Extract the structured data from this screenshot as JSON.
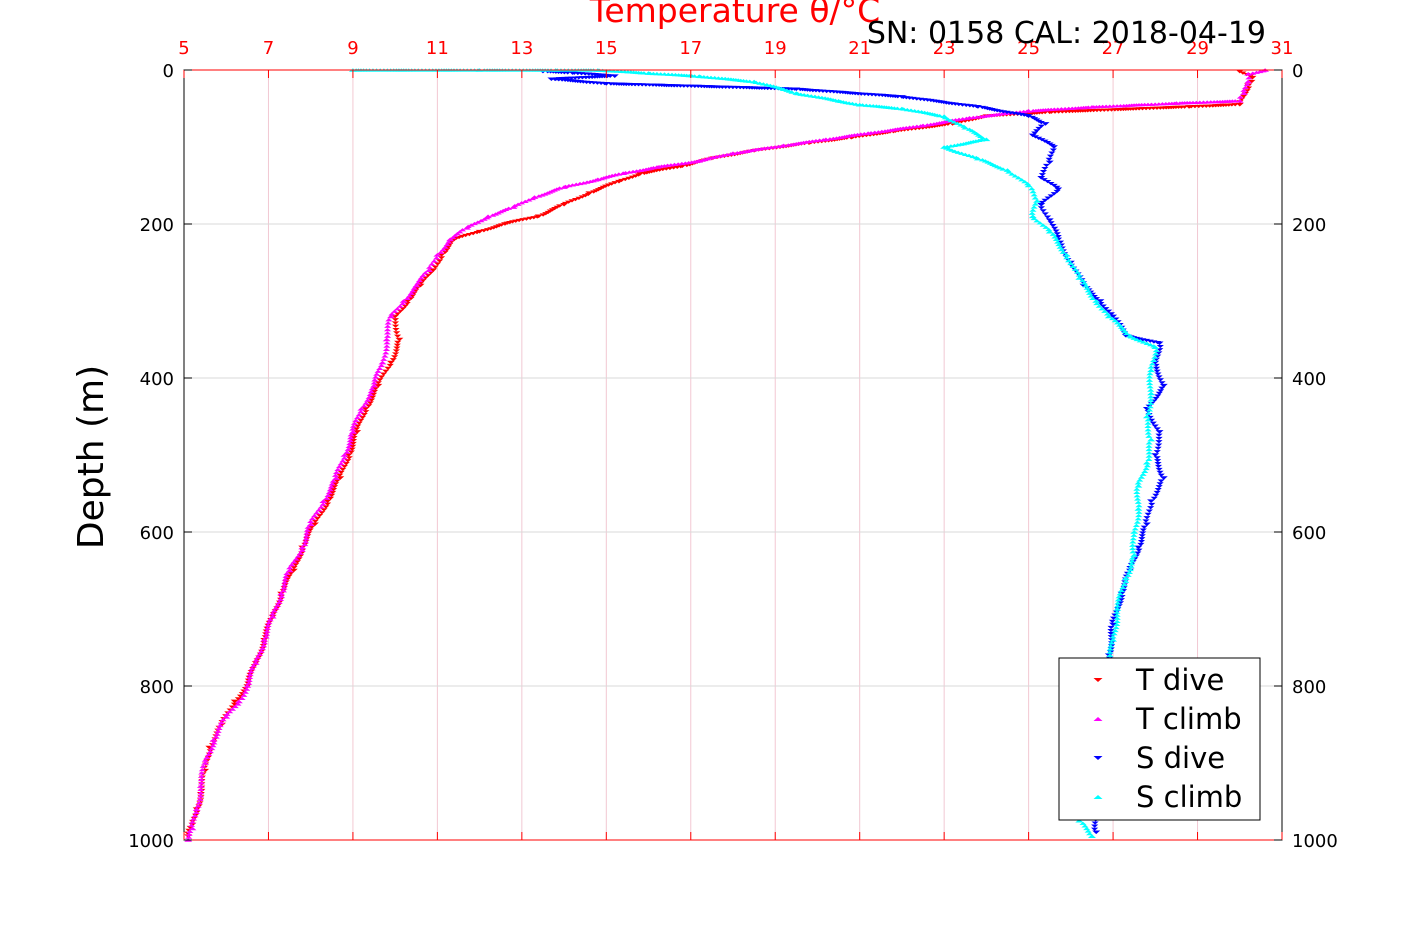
{
  "chart_data": {
    "type": "scatter",
    "title": "Temperature θ/°C",
    "annotation": "SN: 0158  CAL: 2018-04-19",
    "ylabel": "Depth (m)",
    "xlim": [
      5,
      31
    ],
    "ylim": [
      0,
      1000
    ],
    "y_inverted": true,
    "x_axis_position": "top",
    "x_ticks": [
      "5",
      "7",
      "9",
      "11",
      "13",
      "15",
      "17",
      "19",
      "21",
      "23",
      "25",
      "27",
      "29",
      "31"
    ],
    "y_ticks": [
      "0",
      "200",
      "400",
      "600",
      "800",
      "1000"
    ],
    "grid": true,
    "legend_position": "bottom-right",
    "colors": {
      "axis_x": "#ff0000",
      "grid": "#d9d9d9",
      "grid_x": "#f2c8d2",
      "t_dive": "#ff0000",
      "t_climb": "#ff00ff",
      "s_dive": "#0000ff",
      "s_climb": "#00ffff"
    },
    "series": [
      {
        "name": "T dive",
        "marker": "triangle-down",
        "color": "#ff0000",
        "points": [
          [
            30.0,
            2
          ],
          [
            30.3,
            10
          ],
          [
            30.2,
            20
          ],
          [
            30.0,
            45
          ],
          [
            28.8,
            48
          ],
          [
            25.5,
            55
          ],
          [
            24.0,
            60
          ],
          [
            23.2,
            70
          ],
          [
            21.8,
            80
          ],
          [
            20.8,
            88
          ],
          [
            19.8,
            95
          ],
          [
            18.5,
            105
          ],
          [
            17.5,
            115
          ],
          [
            16.8,
            125
          ],
          [
            15.8,
            135
          ],
          [
            15.3,
            145
          ],
          [
            14.6,
            160
          ],
          [
            14.0,
            175
          ],
          [
            13.4,
            190
          ],
          [
            12.6,
            200
          ],
          [
            12.0,
            210
          ],
          [
            11.4,
            220
          ],
          [
            11.1,
            240
          ],
          [
            10.9,
            260
          ],
          [
            10.6,
            280
          ],
          [
            10.3,
            300
          ],
          [
            10.0,
            320
          ],
          [
            10.1,
            350
          ],
          [
            9.9,
            380
          ],
          [
            9.6,
            410
          ],
          [
            9.3,
            440
          ],
          [
            9.1,
            470
          ],
          [
            8.9,
            500
          ],
          [
            8.7,
            530
          ],
          [
            8.4,
            560
          ],
          [
            8.1,
            590
          ],
          [
            7.8,
            620
          ],
          [
            7.6,
            650
          ],
          [
            7.3,
            680
          ],
          [
            7.1,
            710
          ],
          [
            6.9,
            740
          ],
          [
            6.7,
            770
          ],
          [
            6.5,
            800
          ],
          [
            6.2,
            820
          ],
          [
            5.9,
            850
          ],
          [
            5.6,
            880
          ],
          [
            5.5,
            910
          ],
          [
            5.4,
            940
          ],
          [
            5.3,
            960
          ],
          [
            5.2,
            980
          ],
          [
            5.1,
            995
          ]
        ]
      },
      {
        "name": "T climb",
        "marker": "triangle-up",
        "color": "#ff00ff",
        "points": [
          [
            30.6,
            0
          ],
          [
            30.2,
            5
          ],
          [
            30.2,
            15
          ],
          [
            30.1,
            30
          ],
          [
            30.0,
            40
          ],
          [
            28.5,
            43
          ],
          [
            26.5,
            48
          ],
          [
            25.0,
            53
          ],
          [
            23.6,
            62
          ],
          [
            22.5,
            72
          ],
          [
            21.2,
            82
          ],
          [
            20.2,
            90
          ],
          [
            19.2,
            98
          ],
          [
            18.0,
            108
          ],
          [
            17.2,
            118
          ],
          [
            16.2,
            126
          ],
          [
            15.4,
            134
          ],
          [
            14.8,
            142
          ],
          [
            14.0,
            152
          ],
          [
            13.3,
            165
          ],
          [
            12.8,
            178
          ],
          [
            12.2,
            190
          ],
          [
            11.7,
            205
          ],
          [
            11.3,
            220
          ],
          [
            11.0,
            240
          ],
          [
            10.8,
            260
          ],
          [
            10.5,
            280
          ],
          [
            10.2,
            300
          ],
          [
            9.9,
            320
          ],
          [
            9.8,
            350
          ],
          [
            9.7,
            380
          ],
          [
            9.5,
            410
          ],
          [
            9.2,
            440
          ],
          [
            9.0,
            470
          ],
          [
            8.8,
            500
          ],
          [
            8.6,
            530
          ],
          [
            8.3,
            560
          ],
          [
            8.0,
            590
          ],
          [
            7.8,
            620
          ],
          [
            7.5,
            650
          ],
          [
            7.3,
            680
          ],
          [
            7.1,
            710
          ],
          [
            6.9,
            740
          ],
          [
            6.7,
            770
          ],
          [
            6.5,
            800
          ],
          [
            6.3,
            820
          ],
          [
            6.0,
            840
          ],
          [
            5.7,
            870
          ],
          [
            5.5,
            900
          ],
          [
            5.4,
            930
          ],
          [
            5.3,
            960
          ],
          [
            5.2,
            985
          ],
          [
            5.1,
            1000
          ]
        ]
      },
      {
        "name": "S dive",
        "marker": "triangle-down",
        "color": "#0000ff",
        "points": [
          [
            13.5,
            2
          ],
          [
            14.2,
            4
          ],
          [
            15.2,
            8
          ],
          [
            13.7,
            12
          ],
          [
            15.0,
            18
          ],
          [
            19.5,
            25
          ],
          [
            22.0,
            35
          ],
          [
            23.8,
            48
          ],
          [
            25.0,
            60
          ],
          [
            25.4,
            70
          ],
          [
            25.1,
            85
          ],
          [
            25.6,
            100
          ],
          [
            25.5,
            120
          ],
          [
            25.3,
            140
          ],
          [
            25.7,
            155
          ],
          [
            25.3,
            175
          ],
          [
            25.5,
            195
          ],
          [
            25.7,
            220
          ],
          [
            26.0,
            250
          ],
          [
            26.3,
            280
          ],
          [
            26.7,
            300
          ],
          [
            27.0,
            320
          ],
          [
            27.3,
            345
          ],
          [
            28.1,
            355
          ],
          [
            28.0,
            380
          ],
          [
            28.2,
            410
          ],
          [
            27.8,
            440
          ],
          [
            28.1,
            470
          ],
          [
            28.0,
            500
          ],
          [
            28.2,
            530
          ],
          [
            27.9,
            560
          ],
          [
            27.8,
            590
          ],
          [
            27.6,
            620
          ],
          [
            27.4,
            650
          ],
          [
            27.2,
            680
          ],
          [
            27.0,
            720
          ],
          [
            26.9,
            760
          ],
          [
            26.8,
            800
          ],
          [
            26.7,
            850
          ],
          [
            26.6,
            900
          ],
          [
            26.6,
            950
          ],
          [
            26.6,
            990
          ]
        ]
      },
      {
        "name": "S climb",
        "marker": "triangle-up",
        "color": "#00ffff",
        "points": [
          [
            9.0,
            0
          ],
          [
            12.0,
            0
          ],
          [
            13.8,
            0
          ],
          [
            14.8,
            0
          ],
          [
            16.0,
            4
          ],
          [
            17.2,
            8
          ],
          [
            18.5,
            15
          ],
          [
            19.2,
            25
          ],
          [
            19.5,
            30
          ],
          [
            20.5,
            40
          ],
          [
            21.0,
            45
          ],
          [
            22.0,
            50
          ],
          [
            23.0,
            60
          ],
          [
            23.5,
            75
          ],
          [
            24.0,
            90
          ],
          [
            23.0,
            100
          ],
          [
            23.8,
            115
          ],
          [
            24.5,
            130
          ],
          [
            25.0,
            150
          ],
          [
            25.2,
            170
          ],
          [
            25.1,
            190
          ],
          [
            25.5,
            210
          ],
          [
            25.9,
            240
          ],
          [
            26.2,
            270
          ],
          [
            26.6,
            300
          ],
          [
            26.9,
            320
          ],
          [
            27.4,
            345
          ],
          [
            28.0,
            360
          ],
          [
            27.9,
            390
          ],
          [
            27.9,
            420
          ],
          [
            27.8,
            450
          ],
          [
            27.9,
            480
          ],
          [
            27.8,
            510
          ],
          [
            27.6,
            540
          ],
          [
            27.6,
            570
          ],
          [
            27.5,
            600
          ],
          [
            27.5,
            630
          ],
          [
            27.3,
            660
          ],
          [
            27.1,
            700
          ],
          [
            27.0,
            740
          ],
          [
            26.9,
            780
          ],
          [
            26.8,
            830
          ],
          [
            26.6,
            880
          ],
          [
            26.5,
            930
          ],
          [
            26.2,
            975
          ],
          [
            26.5,
            995
          ]
        ]
      }
    ]
  }
}
